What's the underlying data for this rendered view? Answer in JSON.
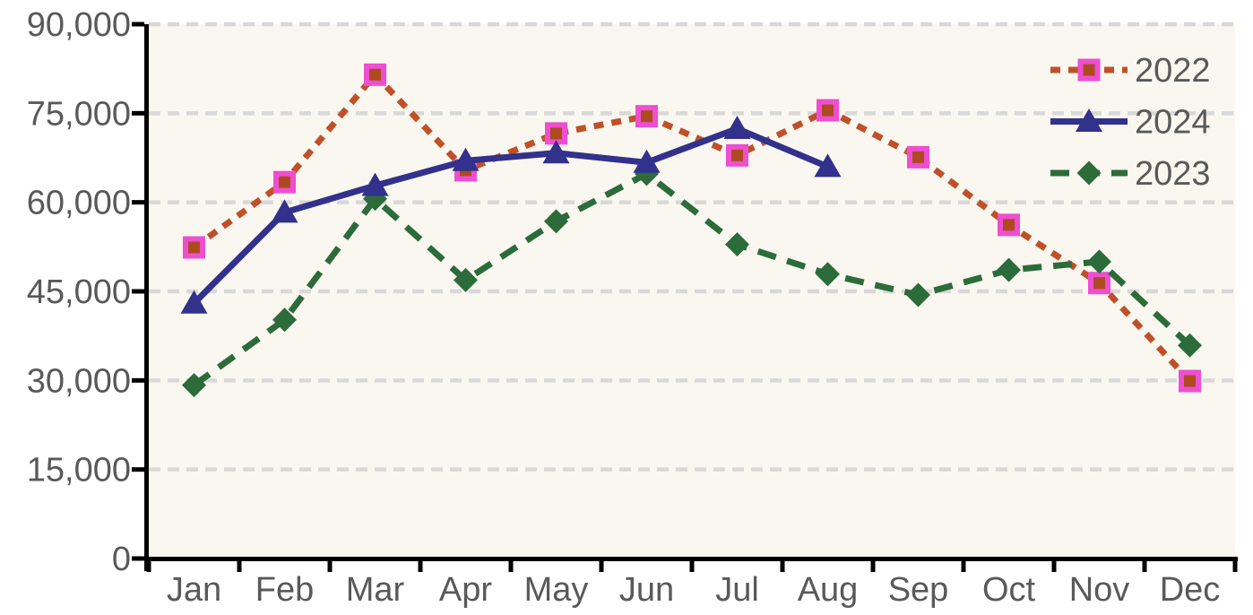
{
  "page": {
    "background": "#FFFFFF"
  },
  "chart_data": {
    "type": "line",
    "title": "",
    "xlabel": "",
    "ylabel": "",
    "categories": [
      "Jan",
      "Feb",
      "Mar",
      "Apr",
      "May",
      "Jun",
      "Jul",
      "Aug",
      "Sep",
      "Oct",
      "Nov",
      "Dec"
    ],
    "y_axis": {
      "min": 0,
      "max": 90000,
      "step": 15000,
      "ticks": [
        {
          "value": 0,
          "label": "0"
        },
        {
          "value": 15000,
          "label": "15,000"
        },
        {
          "value": 30000,
          "label": "30,000"
        },
        {
          "value": 45000,
          "label": "45,000"
        },
        {
          "value": 60000,
          "label": "60,000"
        },
        {
          "value": 75000,
          "label": "75,000"
        },
        {
          "value": 90000,
          "label": "90,000"
        }
      ]
    },
    "grid": "horizontal-dashed",
    "series": [
      {
        "name": "2022",
        "line_style": "dotted",
        "marker": "square",
        "color": "#C05028",
        "marker_fill": "#AE4A20",
        "marker_border": "#EE4ED1",
        "values": [
          52400,
          63400,
          81500,
          65400,
          71600,
          74500,
          67900,
          75500,
          67600,
          56200,
          46400,
          29900
        ]
      },
      {
        "name": "2023",
        "line_style": "dashed",
        "marker": "diamond",
        "color": "#2C6B3A",
        "marker_fill": "#2C6B3A",
        "marker_border": "#2C6B3A",
        "values": [
          29200,
          40200,
          60600,
          46900,
          56800,
          64800,
          52900,
          47900,
          44400,
          48600,
          50000,
          35900
        ]
      },
      {
        "name": "2024",
        "line_style": "solid",
        "marker": "triangle",
        "color": "#32318C",
        "marker_fill": "#32318C",
        "marker_border": "#32318C",
        "values": [
          43000,
          58300,
          62800,
          67000,
          68300,
          66700,
          72400,
          66000,
          null,
          null,
          null,
          null
        ]
      }
    ],
    "legend": {
      "position": "top-right",
      "order": [
        "2022",
        "2024",
        "2023"
      ]
    },
    "styles": {
      "plot_bg": "#F9F7EF",
      "gridline": "#D8D8D8",
      "axis": "#000000",
      "text": "#595959"
    }
  }
}
